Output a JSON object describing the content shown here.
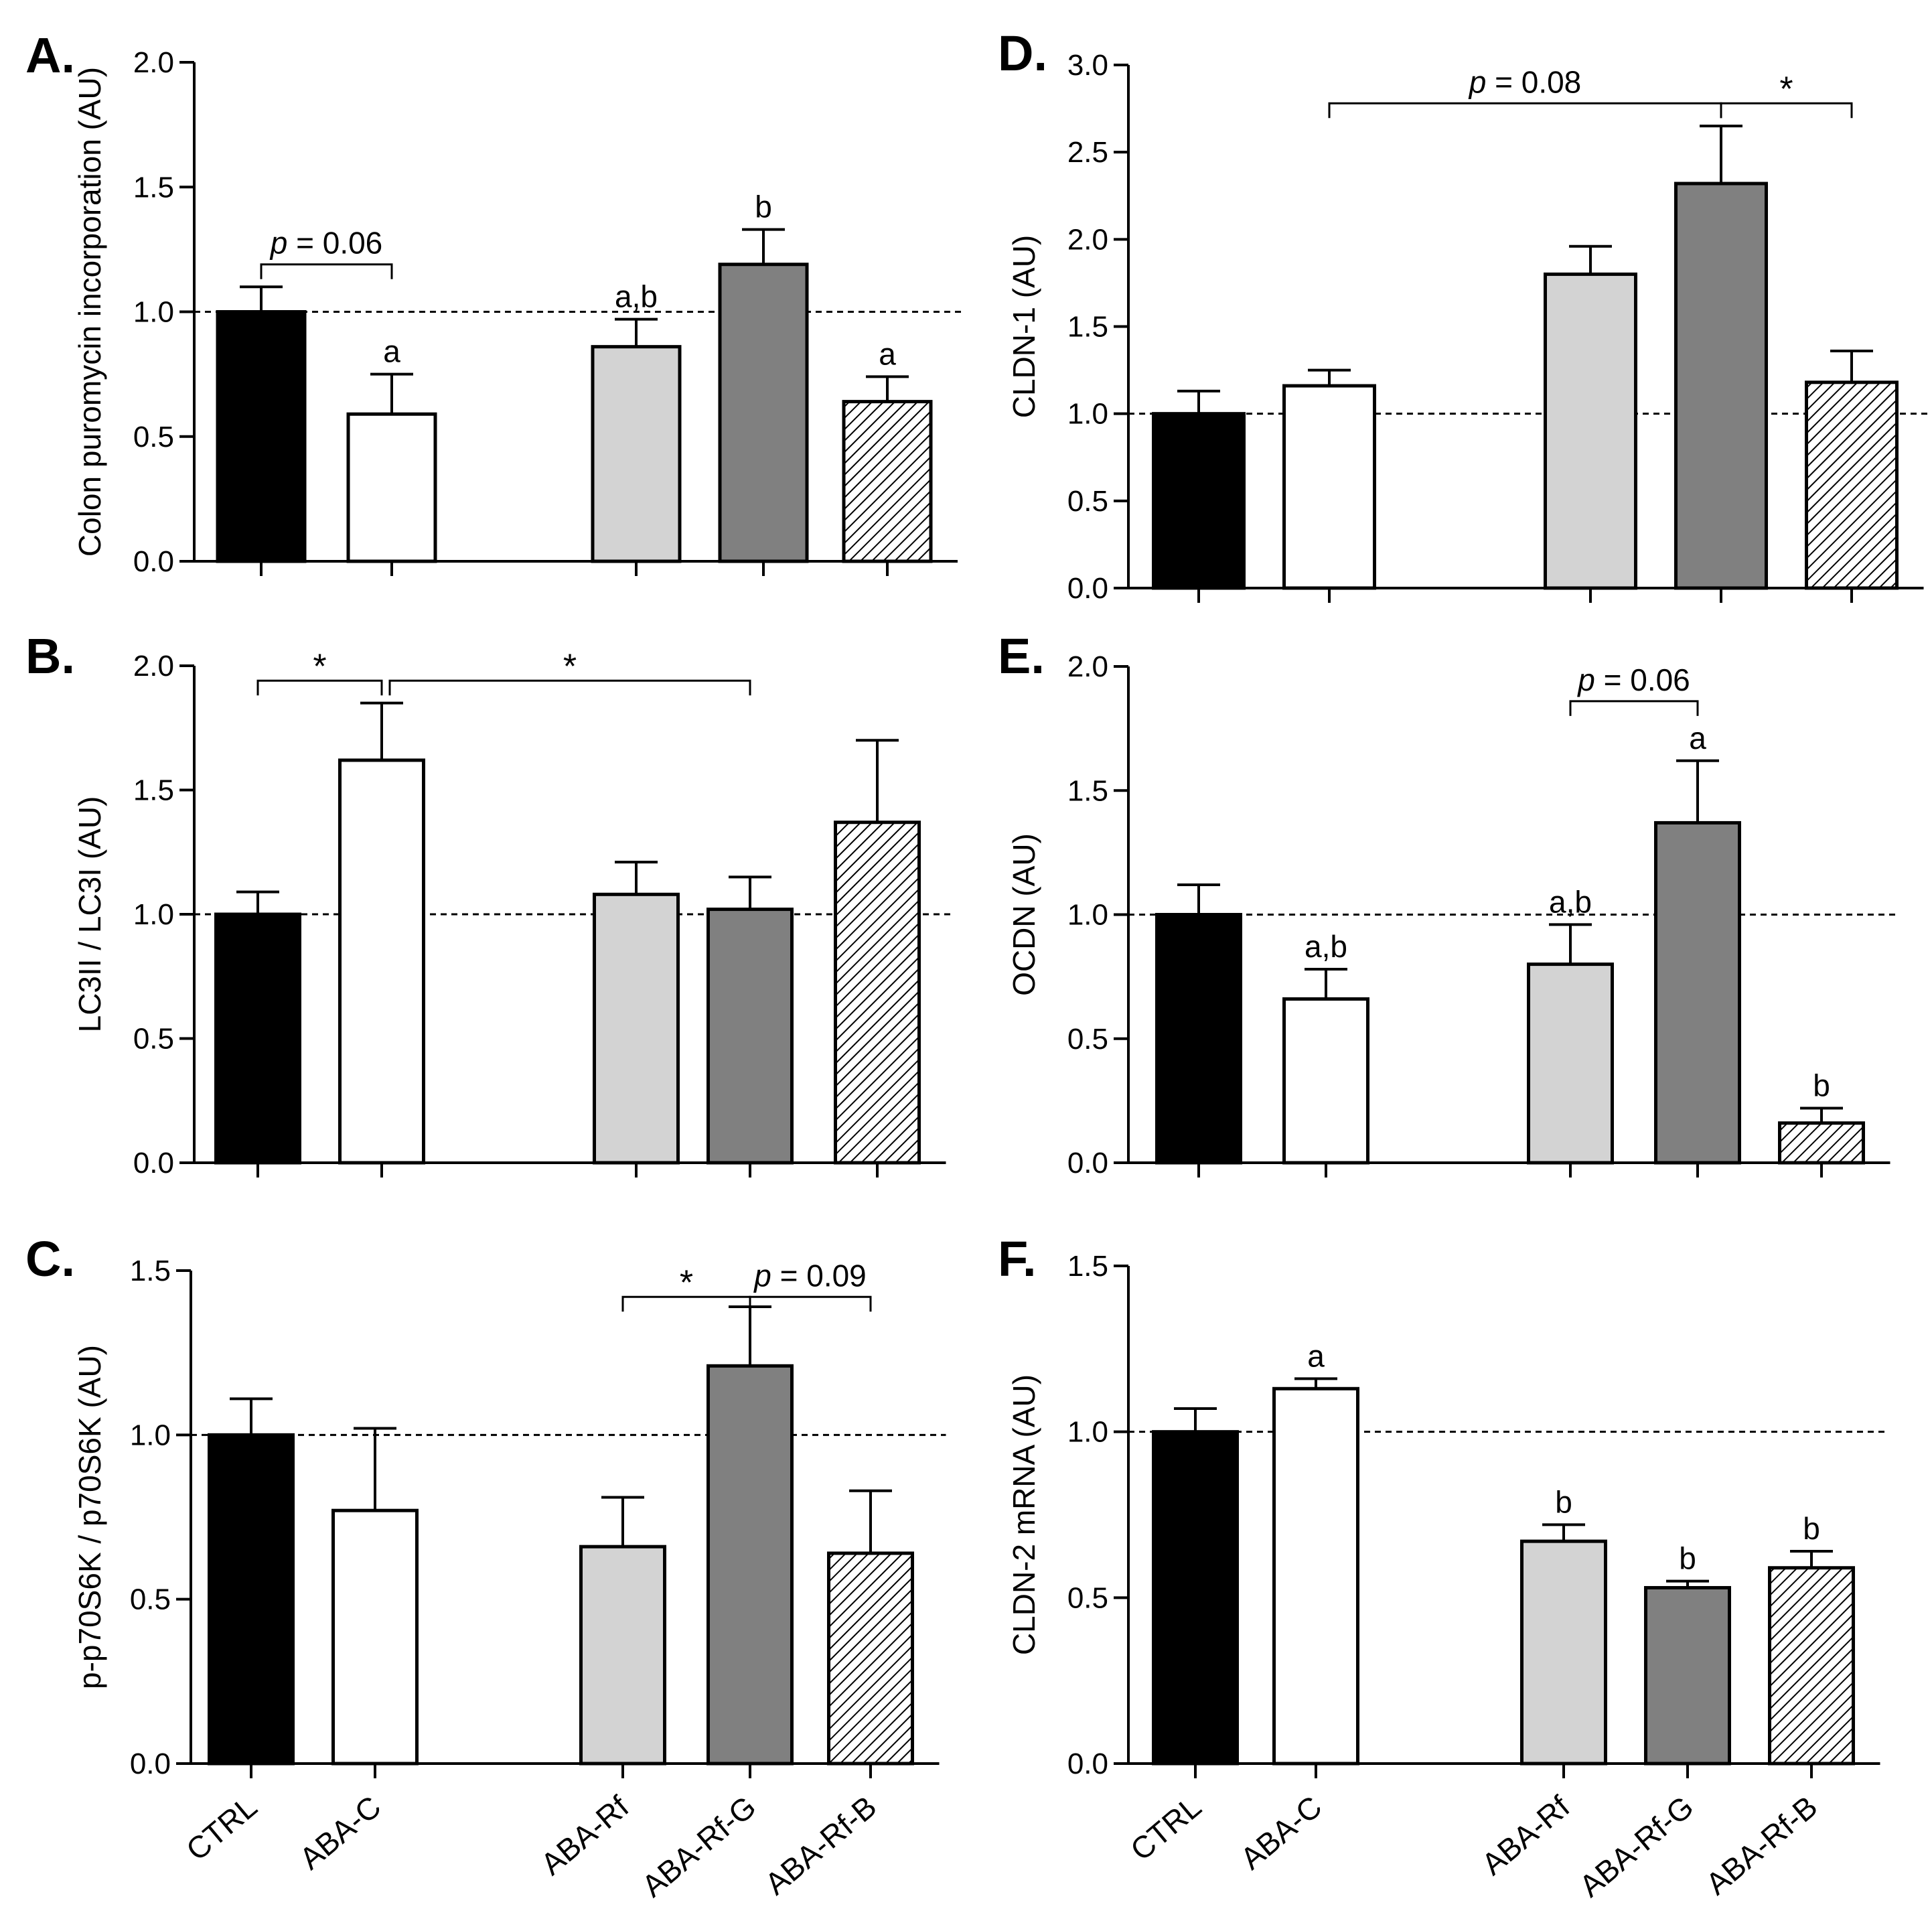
{
  "categories": [
    "CTRL",
    "ABA-C",
    "ABA-Rf",
    "ABA-Rf-G",
    "ABA-Rf-B"
  ],
  "colors": {
    "CTRL": "#000000",
    "ABA-C": "#ffffff",
    "ABA-Rf": "#d3d3d3",
    "ABA-Rf-G": "#808080",
    "ABA-Rf-B": "hatched",
    "axis": "#000000"
  },
  "chart_data": [
    {
      "panel": "A.",
      "type": "bar",
      "ylabel": "Colon puromycin incorporation (AU)",
      "ylim": [
        0,
        2.0
      ],
      "yticks": [
        "0.0",
        "0.5",
        "1.0",
        "1.5",
        "2.0"
      ],
      "categories": [
        "CTRL",
        "ABA-C",
        "ABA-Rf",
        "ABA-Rf-G",
        "ABA-Rf-B"
      ],
      "values": [
        1.0,
        0.59,
        0.86,
        1.19,
        0.64
      ],
      "errors": [
        0.1,
        0.16,
        0.11,
        0.14,
        0.1
      ],
      "letters": [
        "",
        "a",
        "a,b",
        "b",
        "a"
      ],
      "reference_line": 1.0,
      "brackets": [
        {
          "from": 0,
          "to": 1,
          "label": "p = 0.06",
          "y": 1.19
        }
      ]
    },
    {
      "panel": "B.",
      "type": "bar",
      "ylabel": "LC3II / LC3I (AU)",
      "ylim": [
        0,
        2.0
      ],
      "yticks": [
        "0.0",
        "0.5",
        "1.0",
        "1.5",
        "2.0"
      ],
      "categories": [
        "CTRL",
        "ABA-C",
        "ABA-Rf",
        "ABA-Rf-G",
        "ABA-Rf-B"
      ],
      "values": [
        1.0,
        1.62,
        1.08,
        1.02,
        1.37
      ],
      "errors": [
        0.09,
        0.23,
        0.13,
        0.13,
        0.33
      ],
      "letters": [
        "",
        "",
        "",
        "",
        ""
      ],
      "reference_line": 1.0,
      "brackets": [
        {
          "from": 0,
          "to": 1,
          "label": "*",
          "y": 1.94
        },
        {
          "from": 1,
          "to": 3,
          "label": "*",
          "y": 1.94
        }
      ]
    },
    {
      "panel": "C.",
      "type": "bar",
      "ylabel": "p-p70S6K / p70S6K (AU)",
      "ylim": [
        0,
        1.5
      ],
      "yticks": [
        "0.0",
        "0.5",
        "1.0",
        "1.5"
      ],
      "categories": [
        "CTRL",
        "ABA-C",
        "ABA-Rf",
        "ABA-Rf-G",
        "ABA-Rf-B"
      ],
      "values": [
        1.0,
        0.77,
        0.66,
        1.21,
        0.64
      ],
      "errors": [
        0.11,
        0.25,
        0.15,
        0.18,
        0.19
      ],
      "letters": [
        "",
        "",
        "",
        "",
        ""
      ],
      "reference_line": 1.0,
      "brackets": [
        {
          "from": 2,
          "to": 3,
          "label": "*",
          "y": 1.42
        },
        {
          "from": 3,
          "to": 4,
          "label": "p = 0.09",
          "y": 1.42
        }
      ]
    },
    {
      "panel": "D.",
      "type": "bar",
      "ylabel": "CLDN-1 (AU)",
      "ylim": [
        0,
        3.0
      ],
      "yticks": [
        "0.0",
        "0.5",
        "1.0",
        "1.5",
        "2.0",
        "2.5",
        "3.0"
      ],
      "categories": [
        "CTRL",
        "ABA-C",
        "ABA-Rf",
        "ABA-Rf-G",
        "ABA-Rf-B"
      ],
      "values": [
        1.0,
        1.16,
        1.8,
        2.32,
        1.18
      ],
      "errors": [
        0.13,
        0.09,
        0.16,
        0.33,
        0.18
      ],
      "letters": [
        "",
        "",
        "",
        "",
        ""
      ],
      "reference_line": 1.0,
      "brackets": [
        {
          "from": 1,
          "to": 3,
          "label": "p = 0.08",
          "y": 2.78
        },
        {
          "from": 3,
          "to": 4,
          "label": "*",
          "y": 2.78
        }
      ]
    },
    {
      "panel": "E.",
      "type": "bar",
      "ylabel": "OCDN (AU)",
      "ylim": [
        0,
        2.0
      ],
      "yticks": [
        "0.0",
        "0.5",
        "1.0",
        "1.5",
        "2.0"
      ],
      "categories": [
        "CTRL",
        "ABA-C",
        "ABA-Rf",
        "ABA-Rf-G",
        "ABA-Rf-B"
      ],
      "values": [
        1.0,
        0.66,
        0.8,
        1.37,
        0.16
      ],
      "errors": [
        0.12,
        0.12,
        0.16,
        0.25,
        0.06
      ],
      "letters": [
        "",
        "a,b",
        "a,b",
        "a",
        "b"
      ],
      "reference_line": 1.0,
      "brackets": [
        {
          "from": 2,
          "to": 3,
          "label": "p = 0.06",
          "y": 1.86
        }
      ]
    },
    {
      "panel": "F.",
      "type": "bar",
      "ylabel": "CLDN-2 mRNA (AU)",
      "ylim": [
        0,
        1.5
      ],
      "yticks": [
        "0.0",
        "0.5",
        "1.0",
        "1.5"
      ],
      "categories": [
        "CTRL",
        "ABA-C",
        "ABA-Rf",
        "ABA-Rf-G",
        "ABA-Rf-B"
      ],
      "values": [
        1.0,
        1.13,
        0.67,
        0.53,
        0.59
      ],
      "errors": [
        0.07,
        0.03,
        0.05,
        0.02,
        0.05
      ],
      "letters": [
        "",
        "a",
        "b",
        "b",
        "b"
      ],
      "reference_line": 1.0,
      "brackets": []
    }
  ]
}
